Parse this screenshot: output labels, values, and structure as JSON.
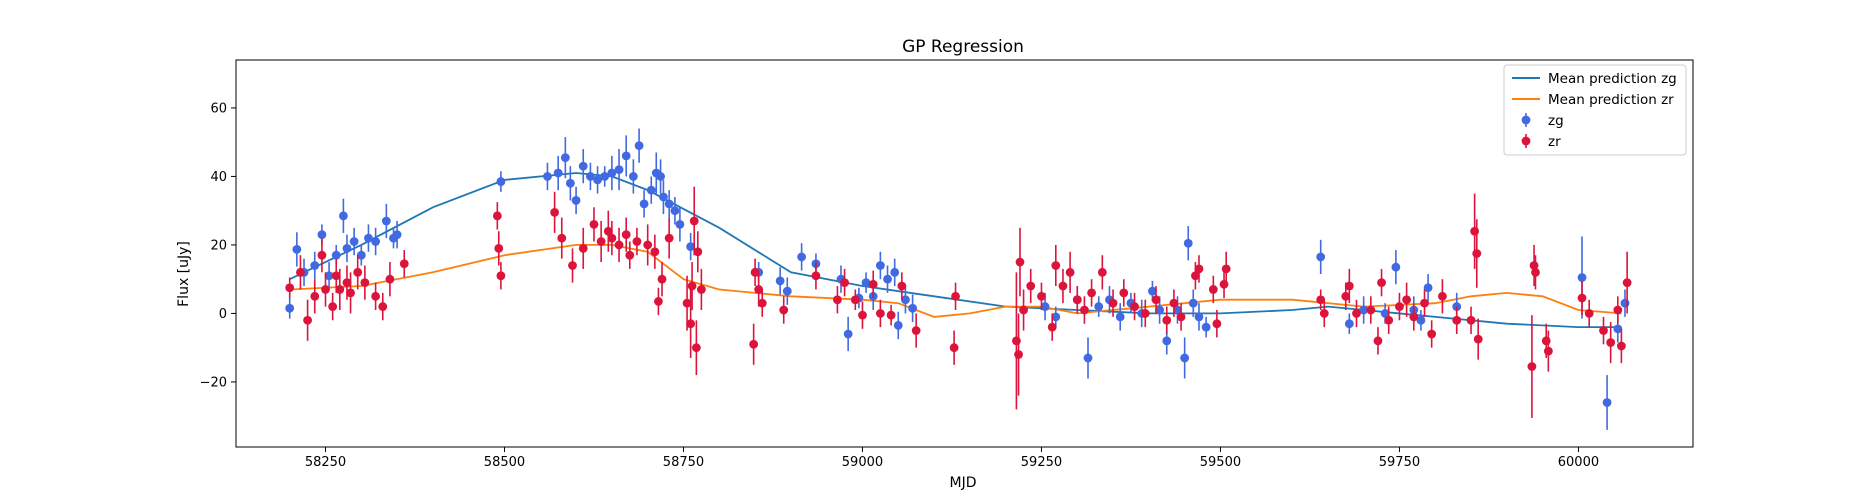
{
  "chart_data": {
    "type": "scatter",
    "title": "GP Regression",
    "xlabel": "MJD",
    "ylabel": "Flux [uJy]",
    "xlim": [
      58125,
      60160
    ],
    "ylim": [
      -39,
      74
    ],
    "x_ticks": [
      58250,
      58500,
      58750,
      59000,
      59250,
      59500,
      59750,
      60000
    ],
    "y_ticks": [
      -20,
      0,
      20,
      40,
      60
    ],
    "grid": false,
    "legend_position": "top-right",
    "series": [
      {
        "name": "Mean prediction zg",
        "kind": "line",
        "color": "#1f77b4",
        "x": [
          58200,
          58300,
          58400,
          58500,
          58600,
          58650,
          58700,
          58800,
          58900,
          59000,
          59100,
          59200,
          59300,
          59400,
          59500,
          59600,
          59650,
          59700,
          59800,
          59900,
          60000,
          60060
        ],
        "y": [
          10,
          20,
          31,
          39,
          41,
          40,
          36,
          25,
          12,
          8,
          5,
          2,
          1,
          0,
          0,
          1,
          2,
          1,
          -1,
          -3,
          -4,
          -4
        ]
      },
      {
        "name": "Mean prediction zr",
        "kind": "line",
        "color": "#ff7f0e",
        "x": [
          58200,
          58300,
          58400,
          58500,
          58600,
          58650,
          58700,
          58750,
          58800,
          58900,
          59000,
          59050,
          59100,
          59150,
          59200,
          59250,
          59300,
          59400,
          59500,
          59600,
          59700,
          59800,
          59850,
          59900,
          59950,
          60000,
          60060
        ],
        "y": [
          7,
          8,
          12,
          17,
          20,
          20,
          18,
          10,
          7,
          5,
          4,
          3,
          -1,
          0,
          2,
          2,
          0,
          2,
          4,
          4,
          2,
          3,
          5,
          6,
          5,
          1,
          0
        ]
      },
      {
        "name": "zg",
        "kind": "errorbar",
        "color": "#4169e1",
        "points": [
          [
            58200,
            1.5,
            3
          ],
          [
            58210,
            18.7,
            5
          ],
          [
            58220,
            12,
            4
          ],
          [
            58235,
            14,
            4
          ],
          [
            58245,
            23,
            3
          ],
          [
            58255,
            11,
            4
          ],
          [
            58265,
            17,
            3
          ],
          [
            58275,
            28.5,
            5
          ],
          [
            58280,
            19,
            4
          ],
          [
            58290,
            21,
            4
          ],
          [
            58300,
            17,
            3
          ],
          [
            58310,
            22,
            4
          ],
          [
            58320,
            21,
            4
          ],
          [
            58335,
            27,
            5
          ],
          [
            58345,
            22,
            3
          ],
          [
            58350,
            23,
            4
          ],
          [
            58495,
            38.5,
            3
          ],
          [
            58560,
            40,
            4
          ],
          [
            58575,
            41,
            5
          ],
          [
            58585,
            45.5,
            6
          ],
          [
            58592,
            38,
            5
          ],
          [
            58600,
            33,
            4
          ],
          [
            58610,
            43,
            5
          ],
          [
            58620,
            40,
            4
          ],
          [
            58630,
            39,
            4
          ],
          [
            58640,
            40,
            3
          ],
          [
            58650,
            41,
            5
          ],
          [
            58660,
            42,
            6
          ],
          [
            58670,
            46,
            6
          ],
          [
            58680,
            40,
            5
          ],
          [
            58688,
            49,
            5
          ],
          [
            58695,
            32,
            4
          ],
          [
            58705,
            36,
            4
          ],
          [
            58712,
            41,
            6
          ],
          [
            58718,
            40,
            5
          ],
          [
            58722,
            34,
            5
          ],
          [
            58730,
            32,
            4
          ],
          [
            58738,
            30,
            4
          ],
          [
            58745,
            26,
            5
          ],
          [
            58760,
            19.5,
            4
          ],
          [
            58855,
            12,
            3
          ],
          [
            58885,
            9.5,
            4
          ],
          [
            58895,
            6.5,
            4
          ],
          [
            58915,
            16.5,
            4
          ],
          [
            58935,
            14.5,
            3
          ],
          [
            58970,
            10,
            4
          ],
          [
            58980,
            -6,
            5
          ],
          [
            58995,
            4.5,
            3
          ],
          [
            59005,
            9,
            3
          ],
          [
            59015,
            5,
            4
          ],
          [
            59025,
            14,
            4
          ],
          [
            59035,
            10,
            4
          ],
          [
            59045,
            12,
            4
          ],
          [
            59050,
            -3.5,
            4
          ],
          [
            59060,
            4,
            4
          ],
          [
            59070,
            1.5,
            4
          ],
          [
            59255,
            2,
            4
          ],
          [
            59270,
            -1,
            3
          ],
          [
            59300,
            4,
            4
          ],
          [
            59315,
            -13,
            6
          ],
          [
            59330,
            2,
            3
          ],
          [
            59345,
            4,
            4
          ],
          [
            59360,
            -1,
            4
          ],
          [
            59375,
            3,
            3
          ],
          [
            59390,
            0,
            4
          ],
          [
            59405,
            6.5,
            3
          ],
          [
            59415,
            1,
            4
          ],
          [
            59425,
            -8,
            4
          ],
          [
            59440,
            1,
            4
          ],
          [
            59450,
            -13,
            6
          ],
          [
            59455,
            20.5,
            5
          ],
          [
            59462,
            3,
            4
          ],
          [
            59470,
            -1,
            4
          ],
          [
            59480,
            -4,
            3
          ],
          [
            59640,
            16.5,
            5
          ],
          [
            59680,
            -3,
            3
          ],
          [
            59700,
            1,
            4
          ],
          [
            59730,
            0,
            3
          ],
          [
            59745,
            13.5,
            5
          ],
          [
            59770,
            1,
            4
          ],
          [
            59780,
            -2,
            3
          ],
          [
            59790,
            7.5,
            4
          ],
          [
            59830,
            2,
            4
          ],
          [
            60005,
            10.5,
            12
          ],
          [
            60040,
            -26,
            8
          ],
          [
            60055,
            -4.5,
            4
          ],
          [
            60065,
            3,
            4
          ]
        ]
      },
      {
        "name": "zr",
        "kind": "errorbar",
        "color": "#dc143c",
        "points": [
          [
            58200,
            7.5,
            3
          ],
          [
            58215,
            12,
            5
          ],
          [
            58225,
            -2,
            6
          ],
          [
            58235,
            5,
            5
          ],
          [
            58245,
            17,
            5
          ],
          [
            58250,
            7,
            5
          ],
          [
            58260,
            2,
            4
          ],
          [
            58265,
            11,
            5
          ],
          [
            58270,
            7,
            6
          ],
          [
            58280,
            9,
            5
          ],
          [
            58285,
            6,
            6
          ],
          [
            58295,
            12,
            5
          ],
          [
            58305,
            9,
            5
          ],
          [
            58320,
            5,
            4
          ],
          [
            58330,
            2,
            4
          ],
          [
            58340,
            10,
            5
          ],
          [
            58360,
            14.5,
            4
          ],
          [
            58490,
            28.5,
            4
          ],
          [
            58492,
            19,
            5
          ],
          [
            58495,
            11,
            4
          ],
          [
            58570,
            29.5,
            6
          ],
          [
            58580,
            22,
            6
          ],
          [
            58595,
            14,
            5
          ],
          [
            58610,
            19,
            6
          ],
          [
            58625,
            26,
            5
          ],
          [
            58635,
            21,
            6
          ],
          [
            58645,
            24,
            6
          ],
          [
            58650,
            22,
            5
          ],
          [
            58660,
            20,
            5
          ],
          [
            58670,
            23,
            5
          ],
          [
            58675,
            17,
            4
          ],
          [
            58685,
            21,
            4
          ],
          [
            58700,
            20,
            6
          ],
          [
            58710,
            18,
            5
          ],
          [
            58715,
            3.5,
            4
          ],
          [
            58720,
            10,
            5
          ],
          [
            58730,
            22,
            6
          ],
          [
            58755,
            3,
            8
          ],
          [
            58760,
            -3,
            10
          ],
          [
            58762,
            8,
            7
          ],
          [
            58765,
            27,
            10
          ],
          [
            58768,
            -10,
            8
          ],
          [
            58770,
            18,
            6
          ],
          [
            58775,
            7,
            6
          ],
          [
            58848,
            -9,
            6
          ],
          [
            58850,
            12,
            4
          ],
          [
            58855,
            7,
            5
          ],
          [
            58860,
            3,
            4
          ],
          [
            58890,
            1,
            4
          ],
          [
            58935,
            11,
            4
          ],
          [
            58965,
            4,
            4
          ],
          [
            58975,
            9,
            4
          ],
          [
            58990,
            4,
            3
          ],
          [
            59000,
            -0.5,
            4
          ],
          [
            59015,
            8.5,
            4
          ],
          [
            59025,
            0,
            4
          ],
          [
            59040,
            -0.5,
            3
          ],
          [
            59055,
            8,
            4
          ],
          [
            59075,
            -5,
            5
          ],
          [
            59128,
            -10,
            5
          ],
          [
            59130,
            5,
            4
          ],
          [
            59215,
            -8,
            20
          ],
          [
            59218,
            -12,
            12
          ],
          [
            59220,
            15,
            10
          ],
          [
            59225,
            1,
            6
          ],
          [
            59235,
            8,
            5
          ],
          [
            59250,
            5,
            4
          ],
          [
            59265,
            -4,
            4
          ],
          [
            59270,
            14,
            6
          ],
          [
            59280,
            8,
            5
          ],
          [
            59290,
            12,
            6
          ],
          [
            59300,
            4,
            4
          ],
          [
            59310,
            1,
            4
          ],
          [
            59320,
            6,
            4
          ],
          [
            59335,
            12,
            5
          ],
          [
            59350,
            3,
            4
          ],
          [
            59365,
            6,
            4
          ],
          [
            59380,
            2,
            4
          ],
          [
            59395,
            0,
            4
          ],
          [
            59410,
            4,
            4
          ],
          [
            59425,
            -2,
            4
          ],
          [
            59435,
            3,
            4
          ],
          [
            59445,
            -1,
            4
          ],
          [
            59465,
            11,
            4
          ],
          [
            59470,
            13,
            4
          ],
          [
            59490,
            7,
            4
          ],
          [
            59495,
            -3,
            4
          ],
          [
            59505,
            8.5,
            4
          ],
          [
            59508,
            13,
            5
          ],
          [
            59640,
            4,
            3
          ],
          [
            59645,
            0,
            4
          ],
          [
            59675,
            5,
            4
          ],
          [
            59680,
            8,
            5
          ],
          [
            59690,
            0,
            4
          ],
          [
            59710,
            1,
            4
          ],
          [
            59720,
            -8,
            4
          ],
          [
            59725,
            9,
            4
          ],
          [
            59735,
            -2,
            4
          ],
          [
            59750,
            2,
            4
          ],
          [
            59760,
            4,
            5
          ],
          [
            59770,
            -1,
            4
          ],
          [
            59785,
            3,
            4
          ],
          [
            59795,
            -6,
            4
          ],
          [
            59810,
            5,
            5
          ],
          [
            59830,
            -2,
            4
          ],
          [
            59850,
            -2,
            4
          ],
          [
            59855,
            24,
            11
          ],
          [
            59858,
            17.5,
            10
          ],
          [
            59860,
            -7.5,
            6
          ],
          [
            59935,
            -15.5,
            15
          ],
          [
            59938,
            14,
            6
          ],
          [
            59940,
            12,
            5
          ],
          [
            59955,
            -8,
            5
          ],
          [
            59958,
            -11,
            6
          ],
          [
            60005,
            4.5,
            5
          ],
          [
            60015,
            0,
            4
          ],
          [
            60035,
            -5,
            4
          ],
          [
            60045,
            -8.5,
            6
          ],
          [
            60055,
            1,
            4
          ],
          [
            60060,
            -9.5,
            5
          ],
          [
            60068,
            9,
            9
          ]
        ]
      }
    ]
  }
}
